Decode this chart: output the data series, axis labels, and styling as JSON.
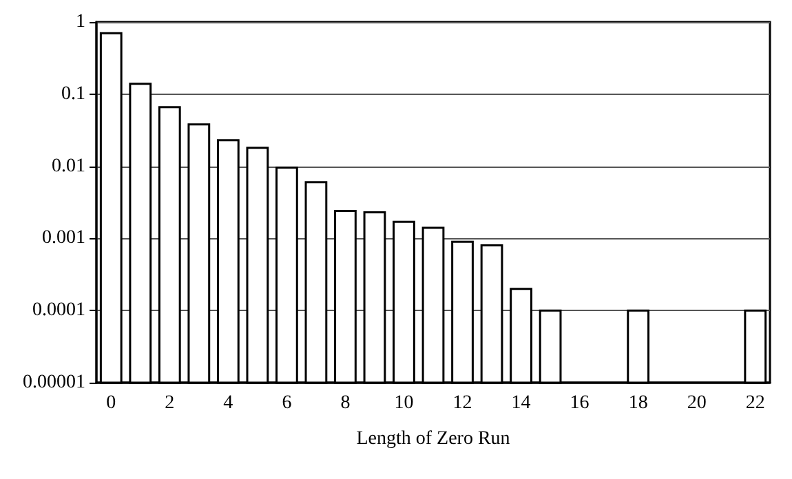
{
  "chart_data": {
    "type": "bar",
    "xlabel": "Length of Zero Run",
    "categories": [
      "0",
      null,
      "2",
      null,
      "4",
      null,
      "6",
      null,
      "8",
      null,
      "10",
      null,
      "12",
      null,
      "14",
      null,
      "16",
      null,
      "18",
      null,
      "20",
      null,
      "22"
    ],
    "values": [
      0.7,
      0.139,
      0.066,
      0.038,
      0.023,
      0.018,
      0.0096,
      0.006,
      0.0024,
      0.0023,
      0.0017,
      0.0014,
      0.0009,
      0.0008,
      0.0002,
      0.0001,
      null,
      null,
      0.0001,
      null,
      null,
      null,
      0.0001
    ],
    "color": "#ffffff",
    "log": "y",
    "ylim": [
      1e-05,
      1
    ],
    "yticks": [
      {
        "value": 1e-05,
        "label": "0.00001"
      },
      0.0001,
      0.001,
      0.01,
      0.1,
      1
    ],
    "grid": "y"
  }
}
